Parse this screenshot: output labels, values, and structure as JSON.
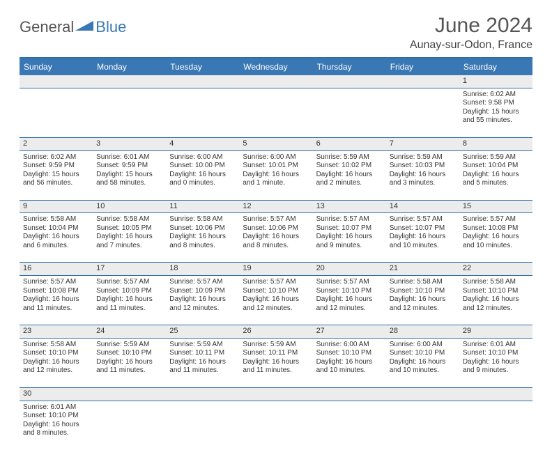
{
  "logo": {
    "general": "General",
    "blue": "Blue"
  },
  "title": "June 2024",
  "location": "Aunay-sur-Odon, France",
  "colors": {
    "header_bg": "#3a78b5",
    "header_text": "#ffffff",
    "border": "#2f6fa8",
    "daynum_bg": "#ececec",
    "text": "#333333"
  },
  "weekdays": [
    "Sunday",
    "Monday",
    "Tuesday",
    "Wednesday",
    "Thursday",
    "Friday",
    "Saturday"
  ],
  "weeks": [
    [
      null,
      null,
      null,
      null,
      null,
      null,
      {
        "n": "1",
        "sr": "Sunrise: 6:02 AM",
        "ss": "Sunset: 9:58 PM",
        "dl": "Daylight: 15 hours and 55 minutes."
      }
    ],
    [
      {
        "n": "2",
        "sr": "Sunrise: 6:02 AM",
        "ss": "Sunset: 9:59 PM",
        "dl": "Daylight: 15 hours and 56 minutes."
      },
      {
        "n": "3",
        "sr": "Sunrise: 6:01 AM",
        "ss": "Sunset: 9:59 PM",
        "dl": "Daylight: 15 hours and 58 minutes."
      },
      {
        "n": "4",
        "sr": "Sunrise: 6:00 AM",
        "ss": "Sunset: 10:00 PM",
        "dl": "Daylight: 16 hours and 0 minutes."
      },
      {
        "n": "5",
        "sr": "Sunrise: 6:00 AM",
        "ss": "Sunset: 10:01 PM",
        "dl": "Daylight: 16 hours and 1 minute."
      },
      {
        "n": "6",
        "sr": "Sunrise: 5:59 AM",
        "ss": "Sunset: 10:02 PM",
        "dl": "Daylight: 16 hours and 2 minutes."
      },
      {
        "n": "7",
        "sr": "Sunrise: 5:59 AM",
        "ss": "Sunset: 10:03 PM",
        "dl": "Daylight: 16 hours and 3 minutes."
      },
      {
        "n": "8",
        "sr": "Sunrise: 5:59 AM",
        "ss": "Sunset: 10:04 PM",
        "dl": "Daylight: 16 hours and 5 minutes."
      }
    ],
    [
      {
        "n": "9",
        "sr": "Sunrise: 5:58 AM",
        "ss": "Sunset: 10:04 PM",
        "dl": "Daylight: 16 hours and 6 minutes."
      },
      {
        "n": "10",
        "sr": "Sunrise: 5:58 AM",
        "ss": "Sunset: 10:05 PM",
        "dl": "Daylight: 16 hours and 7 minutes."
      },
      {
        "n": "11",
        "sr": "Sunrise: 5:58 AM",
        "ss": "Sunset: 10:06 PM",
        "dl": "Daylight: 16 hours and 8 minutes."
      },
      {
        "n": "12",
        "sr": "Sunrise: 5:57 AM",
        "ss": "Sunset: 10:06 PM",
        "dl": "Daylight: 16 hours and 8 minutes."
      },
      {
        "n": "13",
        "sr": "Sunrise: 5:57 AM",
        "ss": "Sunset: 10:07 PM",
        "dl": "Daylight: 16 hours and 9 minutes."
      },
      {
        "n": "14",
        "sr": "Sunrise: 5:57 AM",
        "ss": "Sunset: 10:07 PM",
        "dl": "Daylight: 16 hours and 10 minutes."
      },
      {
        "n": "15",
        "sr": "Sunrise: 5:57 AM",
        "ss": "Sunset: 10:08 PM",
        "dl": "Daylight: 16 hours and 10 minutes."
      }
    ],
    [
      {
        "n": "16",
        "sr": "Sunrise: 5:57 AM",
        "ss": "Sunset: 10:08 PM",
        "dl": "Daylight: 16 hours and 11 minutes."
      },
      {
        "n": "17",
        "sr": "Sunrise: 5:57 AM",
        "ss": "Sunset: 10:09 PM",
        "dl": "Daylight: 16 hours and 11 minutes."
      },
      {
        "n": "18",
        "sr": "Sunrise: 5:57 AM",
        "ss": "Sunset: 10:09 PM",
        "dl": "Daylight: 16 hours and 12 minutes."
      },
      {
        "n": "19",
        "sr": "Sunrise: 5:57 AM",
        "ss": "Sunset: 10:10 PM",
        "dl": "Daylight: 16 hours and 12 minutes."
      },
      {
        "n": "20",
        "sr": "Sunrise: 5:57 AM",
        "ss": "Sunset: 10:10 PM",
        "dl": "Daylight: 16 hours and 12 minutes."
      },
      {
        "n": "21",
        "sr": "Sunrise: 5:58 AM",
        "ss": "Sunset: 10:10 PM",
        "dl": "Daylight: 16 hours and 12 minutes."
      },
      {
        "n": "22",
        "sr": "Sunrise: 5:58 AM",
        "ss": "Sunset: 10:10 PM",
        "dl": "Daylight: 16 hours and 12 minutes."
      }
    ],
    [
      {
        "n": "23",
        "sr": "Sunrise: 5:58 AM",
        "ss": "Sunset: 10:10 PM",
        "dl": "Daylight: 16 hours and 12 minutes."
      },
      {
        "n": "24",
        "sr": "Sunrise: 5:59 AM",
        "ss": "Sunset: 10:10 PM",
        "dl": "Daylight: 16 hours and 11 minutes."
      },
      {
        "n": "25",
        "sr": "Sunrise: 5:59 AM",
        "ss": "Sunset: 10:11 PM",
        "dl": "Daylight: 16 hours and 11 minutes."
      },
      {
        "n": "26",
        "sr": "Sunrise: 5:59 AM",
        "ss": "Sunset: 10:11 PM",
        "dl": "Daylight: 16 hours and 11 minutes."
      },
      {
        "n": "27",
        "sr": "Sunrise: 6:00 AM",
        "ss": "Sunset: 10:10 PM",
        "dl": "Daylight: 16 hours and 10 minutes."
      },
      {
        "n": "28",
        "sr": "Sunrise: 6:00 AM",
        "ss": "Sunset: 10:10 PM",
        "dl": "Daylight: 16 hours and 10 minutes."
      },
      {
        "n": "29",
        "sr": "Sunrise: 6:01 AM",
        "ss": "Sunset: 10:10 PM",
        "dl": "Daylight: 16 hours and 9 minutes."
      }
    ],
    [
      {
        "n": "30",
        "sr": "Sunrise: 6:01 AM",
        "ss": "Sunset: 10:10 PM",
        "dl": "Daylight: 16 hours and 8 minutes."
      },
      null,
      null,
      null,
      null,
      null,
      null
    ]
  ]
}
